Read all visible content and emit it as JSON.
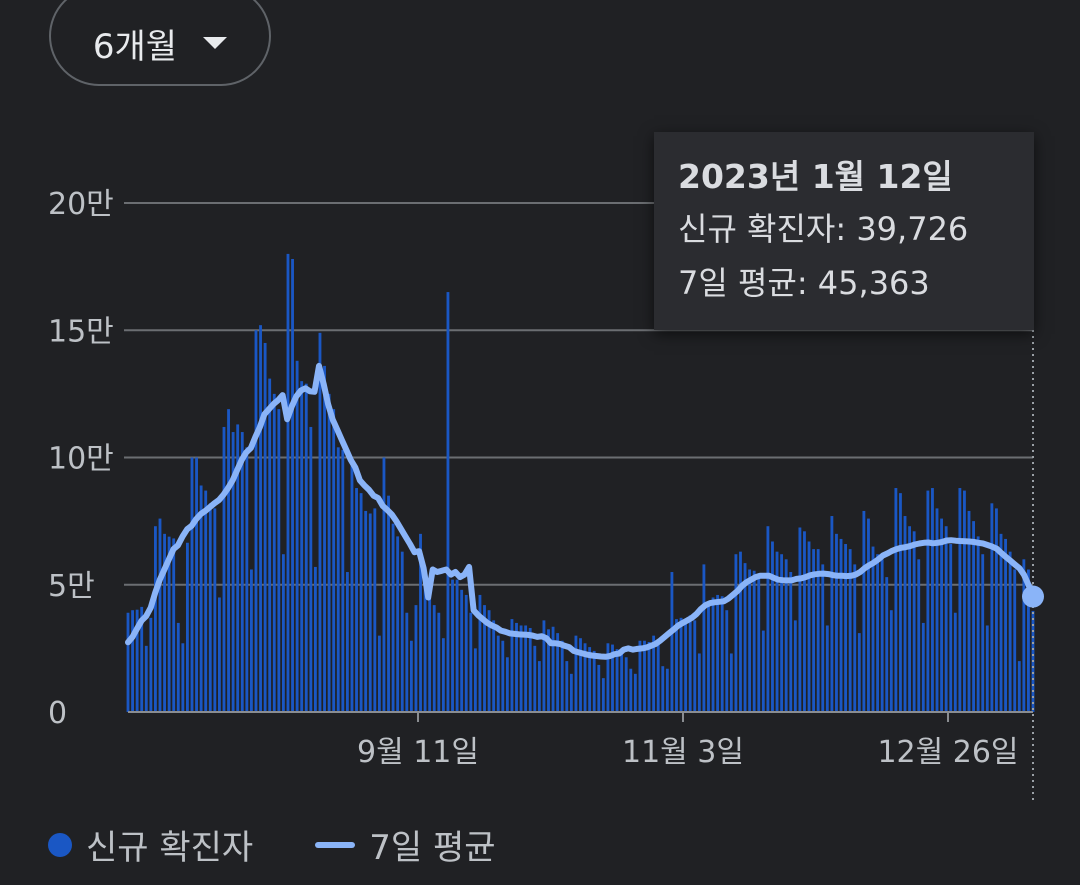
{
  "range_selector": {
    "label": "6개월"
  },
  "tooltip": {
    "date": "2023년 1월 12일",
    "new_cases_text": "신규 확진자: 39,726",
    "avg_text": "7일 평균: 45,363"
  },
  "legend": {
    "new_cases": "신규 확진자",
    "avg": "7일 평균"
  },
  "colors": {
    "bars": "#1a57c4",
    "avg_line": "#8ab4f8",
    "grid": "#6b6e72",
    "background": "#202124"
  },
  "chart_data": {
    "type": "bar",
    "start_date": "2022-07-15",
    "end_date": "2023-01-12",
    "x_ticks": [
      {
        "date": "2022-09-11",
        "label": "9월 11일"
      },
      {
        "date": "2022-11-03",
        "label": "11월 3일"
      },
      {
        "date": "2022-12-26",
        "label": "12월 26일"
      }
    ],
    "y_ticks": [
      {
        "value": 0,
        "label": "0"
      },
      {
        "value": 50000,
        "label": "5만"
      },
      {
        "value": 100000,
        "label": "10만"
      },
      {
        "value": 150000,
        "label": "15만"
      },
      {
        "value": 200000,
        "label": "20만"
      }
    ],
    "ylim": [
      0,
      200000
    ],
    "series": [
      {
        "name": "신규 확진자",
        "type": "bar",
        "values": [
          39000,
          40000,
          40200,
          41300,
          26000,
          37000,
          73000,
          76000,
          70000,
          68900,
          68200,
          35000,
          27000,
          66500,
          100000,
          100000,
          89000,
          87000,
          82000,
          80000,
          45000,
          112000,
          119000,
          110000,
          113000,
          110000,
          104000,
          56000,
          150000,
          152000,
          145000,
          131000,
          125000,
          119000,
          62000,
          180000,
          178000,
          138000,
          130000,
          129000,
          112000,
          57000,
          149000,
          136000,
          125000,
          119000,
          104000,
          103000,
          55000,
          99000,
          88000,
          86000,
          79000,
          78000,
          80000,
          30000,
          100000,
          85000,
          74000,
          69000,
          63000,
          39000,
          28000,
          42000,
          70000,
          55000,
          45000,
          42000,
          39000,
          29000,
          165000,
          52000,
          52000,
          48000,
          46000,
          39000,
          25000,
          46000,
          42000,
          40000,
          36000,
          30000,
          28000,
          21500,
          36500,
          35000,
          34000,
          34000,
          33000,
          26000,
          20000,
          36000,
          32500,
          33500,
          31000,
          28000,
          20000,
          15000,
          30000,
          29000,
          27000,
          25500,
          24000,
          18500,
          13300,
          27000,
          26500,
          24700,
          23000,
          21500,
          17000,
          15000,
          28000,
          28000,
          27500,
          30000,
          27500,
          18000,
          17000,
          55000,
          36500,
          37000,
          35000,
          38000,
          36000,
          23000,
          58000,
          43000,
          45000,
          46000,
          45500,
          40000,
          23000,
          62000,
          63000,
          58500,
          56000,
          55500,
          53000,
          32000,
          73000,
          67000,
          63000,
          62000,
          60000,
          55000,
          36000,
          72500,
          71000,
          67000,
          64000,
          64000,
          58000,
          34000,
          77000,
          70000,
          68000,
          66000,
          64000,
          58000,
          31000,
          79000,
          76000,
          65000,
          62000,
          60000,
          53000,
          40000,
          88000,
          86000,
          77000,
          73000,
          71000,
          60000,
          35000,
          87000,
          88000,
          80000,
          76000,
          73000,
          66000,
          39000,
          88000,
          87000,
          79000,
          75000,
          69000,
          62000,
          34000,
          82000,
          80000,
          70000,
          68000,
          63000,
          56000,
          20000,
          60000,
          56000,
          39726
        ],
        "tooltip_last": 39726
      },
      {
        "name": "7일 평균",
        "type": "line",
        "values": [
          27400,
          29500,
          32800,
          35900,
          37700,
          41000,
          47000,
          52000,
          56000,
          60000,
          64000,
          65500,
          69000,
          71800,
          73200,
          75800,
          77800,
          79000,
          80500,
          82000,
          83300,
          85400,
          88000,
          91000,
          95000,
          99000,
          102000,
          103700,
          108000,
          112000,
          117000,
          119000,
          121000,
          122500,
          124500,
          115000,
          120000,
          124000,
          126300,
          127200,
          126000,
          125800,
          136000,
          129000,
          121000,
          115000,
          111000,
          107000,
          103000,
          99000,
          96000,
          91000,
          89000,
          87300,
          85000,
          84100,
          81000,
          79400,
          77600,
          75000,
          72000,
          69000,
          66000,
          62800,
          63200,
          56500,
          45000,
          56000,
          55000,
          55500,
          56000,
          54000,
          55000,
          53000,
          54000,
          57000,
          40000,
          38000,
          36500,
          35000,
          34000,
          33200,
          32000,
          31500,
          30900,
          30700,
          30500,
          30400,
          30300,
          30000,
          29500,
          29800,
          29000,
          27000,
          27000,
          26700,
          26000,
          25500,
          24000,
          23500,
          23000,
          22500,
          22200,
          22000,
          21800,
          21700,
          22000,
          22700,
          23000,
          24500,
          25000,
          24500,
          24800,
          25000,
          25300,
          26000,
          26700,
          28000,
          29500,
          31000,
          32400,
          34000,
          35000,
          36000,
          37000,
          38500,
          40500,
          42000,
          42800,
          43100,
          43300,
          43500,
          44500,
          46000,
          47500,
          49500,
          51000,
          52000,
          53000,
          53500,
          53500,
          53500,
          52700,
          52000,
          51800,
          51700,
          51800,
          52300,
          52500,
          53000,
          53700,
          54100,
          54300,
          54400,
          54200,
          53800,
          53500,
          53500,
          53400,
          53500,
          54000,
          55000,
          56500,
          57700,
          58700,
          60000,
          61500,
          62300,
          63300,
          64000,
          64500,
          64800,
          65200,
          65800,
          66200,
          66500,
          66600,
          66300,
          66500,
          66800,
          67400,
          67500,
          67300,
          67200,
          67100,
          67000,
          66800,
          66500,
          66200,
          65600,
          65000,
          64200,
          62500,
          61000,
          59500,
          58000,
          56500,
          54000,
          50000,
          45363
        ],
        "tooltip_last": 45363
      }
    ],
    "xlabel": "",
    "ylabel": "",
    "grid": true,
    "legend": "bottom-left"
  }
}
